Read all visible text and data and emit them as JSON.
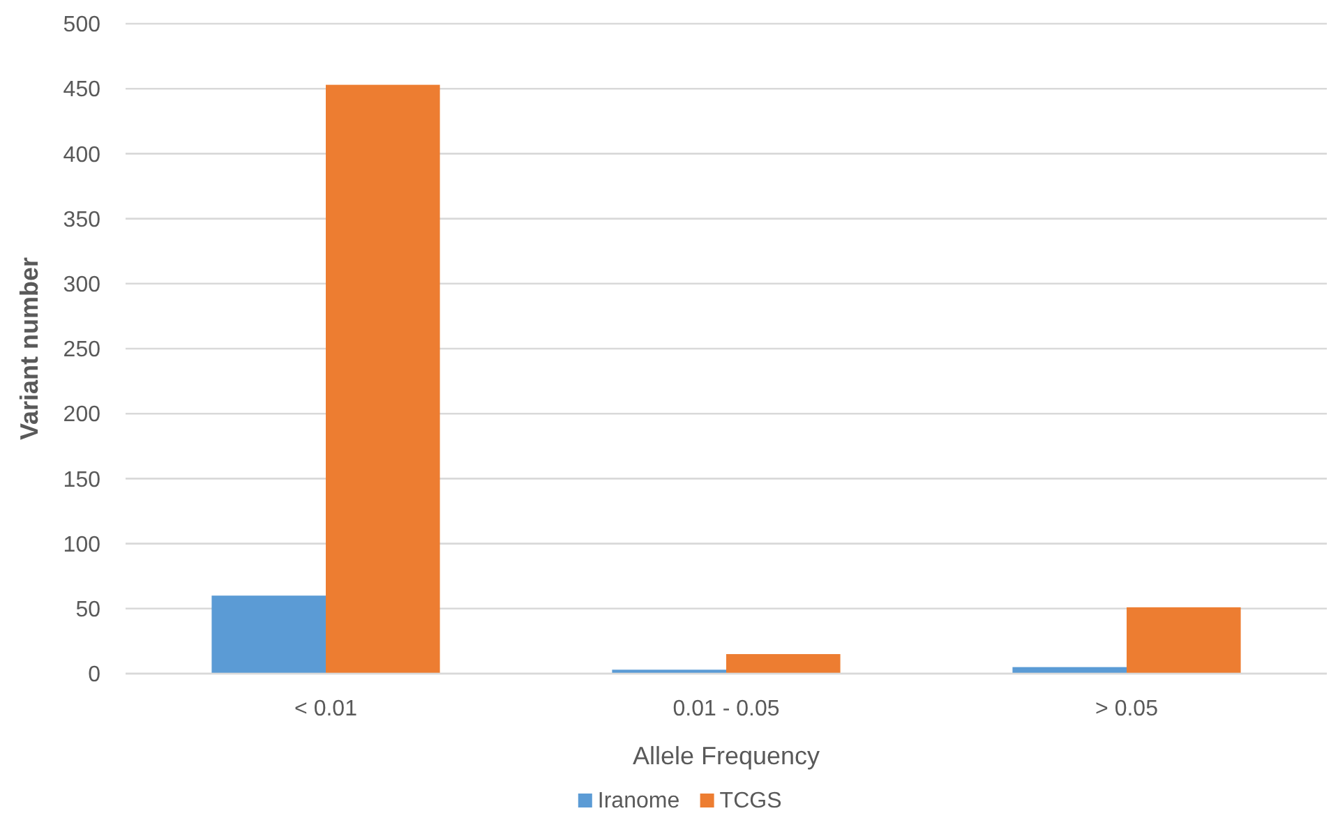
{
  "chart_data": {
    "type": "bar",
    "xlabel": "Allele Frequency",
    "ylabel": "Variant number",
    "categories": [
      "< 0.01",
      "0.01 - 0.05",
      "> 0.05"
    ],
    "series": [
      {
        "name": "Iranome",
        "color": "#5b9bd5",
        "values": [
          60,
          3,
          5
        ]
      },
      {
        "name": "TCGS",
        "color": "#ed7d31",
        "values": [
          453,
          15,
          51
        ]
      }
    ],
    "ylim": [
      0,
      500
    ],
    "yticks": [
      0,
      50,
      100,
      150,
      200,
      250,
      300,
      350,
      400,
      450,
      500
    ],
    "grid": "y",
    "legend": "bottom"
  }
}
